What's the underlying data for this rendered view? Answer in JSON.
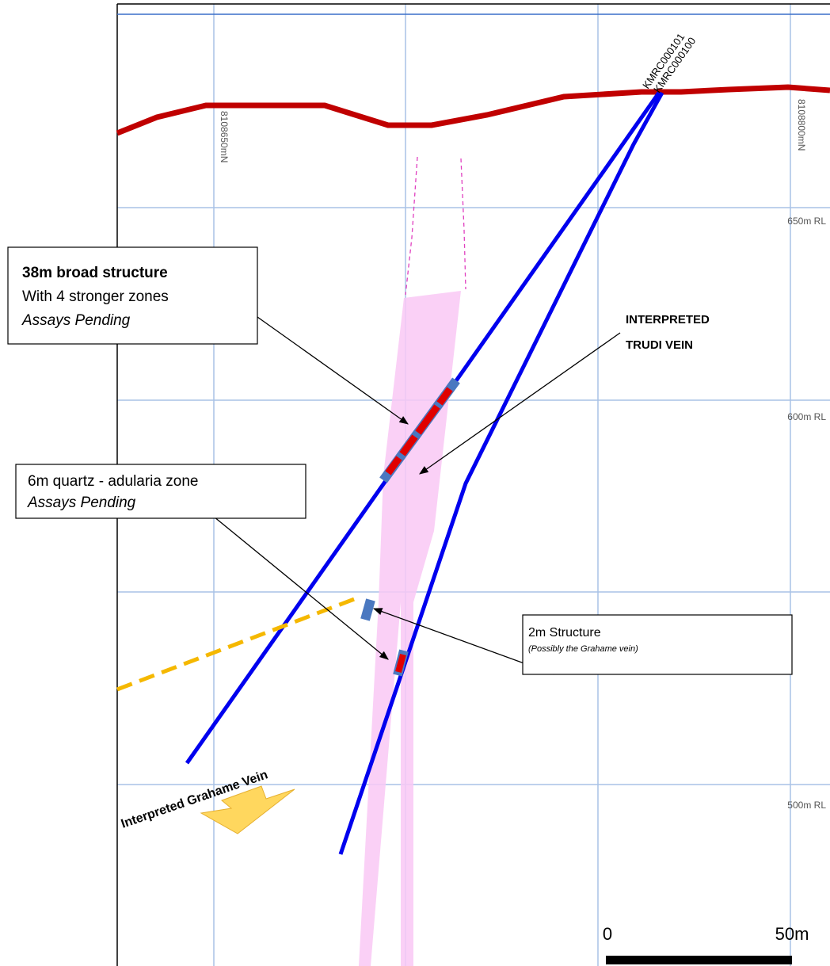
{
  "drillholes": [
    {
      "label": "KMRC000101"
    },
    {
      "label": "KMRC000100"
    }
  ],
  "northings": [
    "8108650mN",
    "8108800mN"
  ],
  "levels": [
    "650m RL",
    "600m RL",
    "500m RL"
  ],
  "callouts": [
    {
      "title": "38m broad structure",
      "line1": "With 4 stronger zones",
      "line2": "Assays Pending"
    },
    {
      "title": "INTERPRETED",
      "line1": "TRUDI VEIN"
    },
    {
      "title": "6m quartz - adularia zone",
      "line1": "Assays Pending"
    },
    {
      "title": "2m Structure",
      "line1": "(Possibly the Grahame vein)"
    }
  ],
  "vein_label": "Interpreted Grahame Vein",
  "scale": {
    "start": "0",
    "end": "50m"
  }
}
